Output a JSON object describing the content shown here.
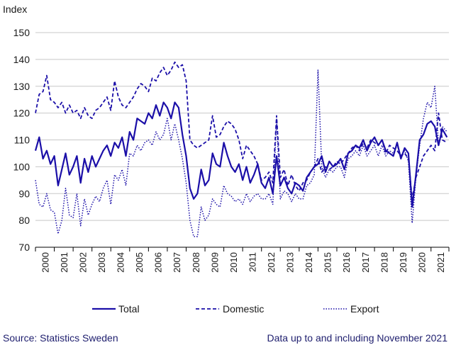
{
  "colors": {
    "series": "#1b0fa8",
    "grid": "#c8c8c8",
    "axis": "#000000",
    "footer": "#1e1e6e"
  },
  "chart_data": {
    "type": "line",
    "ylabel": "Index",
    "ylim": [
      70,
      150
    ],
    "yticks": [
      70,
      80,
      90,
      100,
      110,
      120,
      130,
      140,
      150
    ],
    "xlim": [
      2000,
      2021.95
    ],
    "xticks": [
      "2000",
      "2001",
      "2002",
      "2003",
      "2004",
      "2005",
      "2006",
      "2007",
      "2008",
      "2009",
      "2010",
      "2011",
      "2012",
      "2013",
      "2014",
      "2015",
      "2016",
      "2017",
      "2018",
      "2019",
      "2020",
      "2021"
    ],
    "grid": true,
    "legend_position": "bottom-center",
    "series": [
      {
        "name": "Total",
        "style": "solid",
        "x": [
          2000.0,
          2000.2,
          2000.4,
          2000.6,
          2000.8,
          2001.0,
          2001.2,
          2001.4,
          2001.6,
          2001.8,
          2002.0,
          2002.2,
          2002.4,
          2002.6,
          2002.8,
          2003.0,
          2003.2,
          2003.4,
          2003.6,
          2003.8,
          2004.0,
          2004.2,
          2004.4,
          2004.6,
          2004.8,
          2005.0,
          2005.2,
          2005.4,
          2005.6,
          2005.8,
          2006.0,
          2006.2,
          2006.4,
          2006.6,
          2006.8,
          2007.0,
          2007.2,
          2007.4,
          2007.6,
          2007.8,
          2008.0,
          2008.2,
          2008.4,
          2008.6,
          2008.8,
          2009.0,
          2009.2,
          2009.4,
          2009.6,
          2009.8,
          2010.0,
          2010.2,
          2010.4,
          2010.6,
          2010.8,
          2011.0,
          2011.2,
          2011.4,
          2011.6,
          2011.8,
          2012.0,
          2012.2,
          2012.4,
          2012.6,
          2012.8,
          2013.0,
          2013.2,
          2013.4,
          2013.6,
          2013.8,
          2014.0,
          2014.2,
          2014.4,
          2014.6,
          2014.8,
          2015.0,
          2015.2,
          2015.4,
          2015.6,
          2015.8,
          2016.0,
          2016.2,
          2016.4,
          2016.6,
          2016.8,
          2017.0,
          2017.2,
          2017.4,
          2017.6,
          2017.8,
          2018.0,
          2018.2,
          2018.4,
          2018.6,
          2018.8,
          2019.0,
          2019.2,
          2019.4,
          2019.6,
          2019.8,
          2020.0,
          2020.2,
          2020.4,
          2020.6,
          2020.8,
          2021.0,
          2021.2,
          2021.4,
          2021.6,
          2021.85
        ],
        "values": [
          106,
          111,
          103,
          106,
          101,
          104,
          93,
          99,
          105,
          97,
          100,
          104,
          94,
          103,
          98,
          104,
          100,
          103,
          106,
          108,
          104,
          109,
          107,
          111,
          104,
          113,
          110,
          118,
          117,
          116,
          120,
          118,
          123,
          119,
          124,
          122,
          118,
          124,
          122,
          112,
          104,
          92,
          88,
          90,
          99,
          93,
          95,
          105,
          101,
          100,
          109,
          104,
          100,
          98,
          101,
          95,
          100,
          94,
          97,
          101,
          94,
          92,
          96,
          90,
          104,
          93,
          96,
          92,
          90,
          94,
          93,
          91,
          96,
          98,
          100,
          101,
          104,
          98,
          102,
          100,
          101,
          103,
          99,
          105,
          106,
          108,
          107,
          110,
          106,
          109,
          111,
          108,
          110,
          106,
          105,
          104,
          109,
          103,
          107,
          105,
          85,
          97,
          110,
          112,
          116,
          117,
          115,
          108,
          114,
          111
        ]
      },
      {
        "name": "Domestic",
        "style": "dashed",
        "x": [
          2000.0,
          2000.2,
          2000.4,
          2000.6,
          2000.8,
          2001.0,
          2001.2,
          2001.4,
          2001.6,
          2001.8,
          2002.0,
          2002.2,
          2002.4,
          2002.6,
          2002.8,
          2003.0,
          2003.2,
          2003.4,
          2003.6,
          2003.8,
          2004.0,
          2004.2,
          2004.4,
          2004.6,
          2004.8,
          2005.0,
          2005.2,
          2005.4,
          2005.6,
          2005.8,
          2006.0,
          2006.2,
          2006.4,
          2006.6,
          2006.8,
          2007.0,
          2007.2,
          2007.4,
          2007.6,
          2007.8,
          2008.0,
          2008.2,
          2008.4,
          2008.6,
          2008.8,
          2009.0,
          2009.2,
          2009.4,
          2009.6,
          2009.8,
          2010.0,
          2010.2,
          2010.4,
          2010.6,
          2010.8,
          2011.0,
          2011.2,
          2011.4,
          2011.6,
          2011.8,
          2012.0,
          2012.2,
          2012.4,
          2012.6,
          2012.8,
          2013.0,
          2013.2,
          2013.4,
          2013.6,
          2013.8,
          2014.0,
          2014.2,
          2014.4,
          2014.6,
          2014.8,
          2015.0,
          2015.2,
          2015.4,
          2015.6,
          2015.8,
          2016.0,
          2016.2,
          2016.4,
          2016.6,
          2016.8,
          2017.0,
          2017.2,
          2017.4,
          2017.6,
          2017.8,
          2018.0,
          2018.2,
          2018.4,
          2018.6,
          2018.8,
          2019.0,
          2019.2,
          2019.4,
          2019.6,
          2019.8,
          2020.0,
          2020.2,
          2020.4,
          2020.6,
          2020.8,
          2021.0,
          2021.2,
          2021.4,
          2021.6,
          2021.85
        ],
        "values": [
          120,
          127,
          128,
          134,
          125,
          124,
          122,
          124,
          120,
          123,
          120,
          121,
          118,
          122,
          119,
          118,
          121,
          122,
          124,
          126,
          121,
          132,
          126,
          123,
          122,
          124,
          126,
          129,
          131,
          130,
          128,
          133,
          132,
          135,
          137,
          134,
          136,
          139,
          137,
          138,
          132,
          110,
          108,
          107,
          108,
          109,
          110,
          119,
          111,
          112,
          115,
          117,
          116,
          114,
          110,
          103,
          108,
          106,
          104,
          101,
          95,
          96,
          98,
          94,
          119,
          96,
          99,
          93,
          97,
          93,
          91,
          94,
          95,
          98,
          100,
          103,
          98,
          100,
          99,
          100,
          102,
          101,
          103,
          105,
          107,
          108,
          106,
          109,
          107,
          110,
          109,
          108,
          110,
          105,
          108,
          107,
          106,
          104,
          105,
          103,
          88,
          96,
          100,
          104,
          106,
          108,
          106,
          120,
          110,
          109
        ]
      },
      {
        "name": "Export",
        "style": "dotted",
        "x": [
          2000.0,
          2000.2,
          2000.4,
          2000.6,
          2000.8,
          2001.0,
          2001.2,
          2001.4,
          2001.6,
          2001.8,
          2002.0,
          2002.2,
          2002.4,
          2002.6,
          2002.8,
          2003.0,
          2003.2,
          2003.4,
          2003.6,
          2003.8,
          2004.0,
          2004.2,
          2004.4,
          2004.6,
          2004.8,
          2005.0,
          2005.2,
          2005.4,
          2005.6,
          2005.8,
          2006.0,
          2006.2,
          2006.4,
          2006.6,
          2006.8,
          2007.0,
          2007.2,
          2007.4,
          2007.6,
          2007.8,
          2008.0,
          2008.2,
          2008.4,
          2008.6,
          2008.8,
          2009.0,
          2009.2,
          2009.4,
          2009.6,
          2009.8,
          2010.0,
          2010.2,
          2010.4,
          2010.6,
          2010.8,
          2011.0,
          2011.2,
          2011.4,
          2011.6,
          2011.8,
          2012.0,
          2012.2,
          2012.4,
          2012.6,
          2012.8,
          2013.0,
          2013.2,
          2013.4,
          2013.6,
          2013.8,
          2014.0,
          2014.2,
          2014.4,
          2014.6,
          2014.8,
          2015.0,
          2015.2,
          2015.4,
          2015.6,
          2015.8,
          2016.0,
          2016.2,
          2016.4,
          2016.6,
          2016.8,
          2017.0,
          2017.2,
          2017.4,
          2017.6,
          2017.8,
          2018.0,
          2018.2,
          2018.4,
          2018.6,
          2018.8,
          2019.0,
          2019.2,
          2019.4,
          2019.6,
          2019.8,
          2020.0,
          2020.2,
          2020.4,
          2020.6,
          2020.8,
          2021.0,
          2021.2,
          2021.4,
          2021.6,
          2021.85
        ],
        "values": [
          95,
          86,
          85,
          90,
          84,
          83,
          75,
          80,
          92,
          82,
          81,
          90,
          78,
          88,
          82,
          86,
          89,
          87,
          92,
          95,
          86,
          97,
          95,
          99,
          93,
          105,
          104,
          108,
          106,
          109,
          110,
          108,
          113,
          110,
          112,
          118,
          110,
          116,
          110,
          103,
          94,
          80,
          74,
          74,
          85,
          80,
          82,
          88,
          86,
          85,
          93,
          90,
          89,
          87,
          88,
          86,
          90,
          87,
          89,
          90,
          88,
          88,
          90,
          86,
          118,
          88,
          91,
          90,
          87,
          90,
          88,
          88,
          93,
          94,
          97,
          136,
          100,
          96,
          99,
          98,
          100,
          100,
          96,
          103,
          104,
          106,
          104,
          108,
          104,
          106,
          108,
          104,
          108,
          104,
          106,
          105,
          108,
          104,
          106,
          102,
          79,
          96,
          108,
          118,
          124,
          122,
          130,
          108,
          115,
          113
        ]
      }
    ]
  },
  "legend": [
    {
      "label": "Total",
      "style": "solid"
    },
    {
      "label": "Domestic",
      "style": "dashed"
    },
    {
      "label": "Export",
      "style": "dotted"
    }
  ],
  "footer": {
    "source": "Source: Statistics Sweden",
    "note": "Data up to and including November 2021"
  }
}
